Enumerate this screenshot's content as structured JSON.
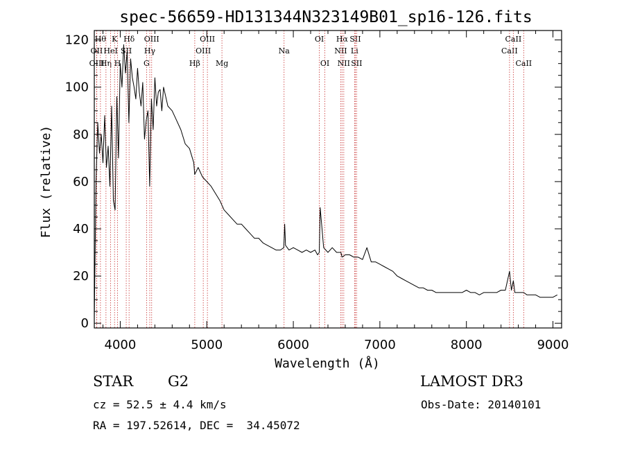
{
  "chart_data": {
    "type": "line",
    "title": "spec-56659-HD131344N323149B01_sp16-126.fits",
    "xlabel": "Wavelength (Å)",
    "ylabel": "Flux (relative)",
    "xlim": [
      3700,
      9100
    ],
    "ylim": [
      -2,
      124
    ],
    "xticks": [
      4000,
      5000,
      6000,
      7000,
      8000,
      9000
    ],
    "yticks": [
      0,
      20,
      40,
      60,
      80,
      100,
      120
    ],
    "series": [
      {
        "name": "spectrum",
        "x": [
          3700,
          3720,
          3740,
          3760,
          3780,
          3800,
          3820,
          3840,
          3860,
          3880,
          3900,
          3920,
          3940,
          3960,
          3980,
          4000,
          4020,
          4040,
          4060,
          4080,
          4100,
          4120,
          4140,
          4160,
          4180,
          4200,
          4220,
          4240,
          4260,
          4280,
          4300,
          4320,
          4340,
          4360,
          4380,
          4400,
          4420,
          4440,
          4460,
          4480,
          4500,
          4550,
          4600,
          4650,
          4700,
          4750,
          4800,
          4850,
          4860,
          4900,
          4950,
          5000,
          5050,
          5100,
          5150,
          5200,
          5250,
          5300,
          5350,
          5400,
          5450,
          5500,
          5550,
          5600,
          5650,
          5700,
          5750,
          5800,
          5850,
          5890,
          5900,
          5910,
          5950,
          6000,
          6050,
          6100,
          6150,
          6200,
          6250,
          6280,
          6300,
          6310,
          6350,
          6400,
          6450,
          6500,
          6550,
          6563,
          6600,
          6650,
          6700,
          6750,
          6800,
          6850,
          6900,
          6950,
          7000,
          7050,
          7100,
          7150,
          7200,
          7250,
          7300,
          7350,
          7400,
          7450,
          7500,
          7550,
          7600,
          7650,
          7700,
          7750,
          7800,
          7850,
          7900,
          7950,
          8000,
          8050,
          8100,
          8150,
          8200,
          8250,
          8300,
          8350,
          8400,
          8450,
          8498,
          8520,
          8542,
          8560,
          8600,
          8662,
          8700,
          8750,
          8800,
          8850,
          8900,
          8950,
          9000,
          9050
        ],
        "y": [
          2,
          60,
          85,
          72,
          80,
          68,
          88,
          66,
          75,
          58,
          92,
          52,
          48,
          96,
          70,
          110,
          100,
          118,
          106,
          115,
          85,
          112,
          104,
          100,
          95,
          108,
          98,
          92,
          102,
          78,
          86,
          90,
          58,
          95,
          82,
          104,
          92,
          98,
          99,
          90,
          100,
          92,
          90,
          86,
          82,
          76,
          74,
          68,
          63,
          66,
          62,
          60,
          58,
          55,
          52,
          48,
          46,
          44,
          42,
          42,
          40,
          38,
          36,
          36,
          34,
          33,
          32,
          31,
          31,
          32,
          42,
          33,
          31,
          32,
          31,
          30,
          31,
          30,
          31,
          29,
          30,
          49,
          32,
          30,
          32,
          30,
          30,
          28,
          29,
          29,
          28,
          28,
          27,
          32,
          26,
          26,
          25,
          24,
          23,
          22,
          20,
          19,
          18,
          17,
          16,
          15,
          15,
          14,
          14,
          13,
          13,
          13,
          13,
          13,
          13,
          13,
          14,
          13,
          13,
          12,
          13,
          13,
          13,
          13,
          14,
          14,
          22,
          14,
          18,
          13,
          13,
          13,
          12,
          12,
          12,
          11,
          11,
          11,
          11,
          12
        ]
      }
    ],
    "line_markers": [
      {
        "label": "OII",
        "x": 3727,
        "row": 1
      },
      {
        "label": "OIII",
        "x": 3729,
        "row": 2
      },
      {
        "label": "Hθ",
        "x": 3771,
        "row": 0
      },
      {
        "label": "Hη",
        "x": 3835,
        "row": 2
      },
      {
        "label": "HeI",
        "x": 3889,
        "row": 1
      },
      {
        "label": "K",
        "x": 3934,
        "row": 0
      },
      {
        "label": "H",
        "x": 3969,
        "row": 2
      },
      {
        "label": "SII",
        "x": 4069,
        "row": 1
      },
      {
        "label": "Hδ",
        "x": 4102,
        "row": 0
      },
      {
        "label": "G",
        "x": 4304,
        "row": 2
      },
      {
        "label": "Hγ",
        "x": 4341,
        "row": 1
      },
      {
        "label": "OIII",
        "x": 4363,
        "row": 0
      },
      {
        "label": "Hβ",
        "x": 4861,
        "row": 2
      },
      {
        "label": "OIII",
        "x": 4959,
        "row": 1
      },
      {
        "label": "OIII",
        "x": 5007,
        "row": 0
      },
      {
        "label": "Mg",
        "x": 5175,
        "row": 2
      },
      {
        "label": "Na",
        "x": 5893,
        "row": 1
      },
      {
        "label": "OI",
        "x": 6300,
        "row": 0
      },
      {
        "label": "OI",
        "x": 6364,
        "row": 2
      },
      {
        "label": "NII",
        "x": 6548,
        "row": 1
      },
      {
        "label": "Hα",
        "x": 6563,
        "row": 0
      },
      {
        "label": "NII",
        "x": 6583,
        "row": 2
      },
      {
        "label": "Li",
        "x": 6707,
        "row": 1
      },
      {
        "label": "SII",
        "x": 6716,
        "row": 0
      },
      {
        "label": "SII",
        "x": 6731,
        "row": 2
      },
      {
        "label": "CaII",
        "x": 8498,
        "row": 1
      },
      {
        "label": "CaII",
        "x": 8542,
        "row": 0
      },
      {
        "label": "CaII",
        "x": 8662,
        "row": 2
      }
    ]
  },
  "info": {
    "object_class": "STAR",
    "subclass": "G2",
    "survey": "LAMOST DR3",
    "redshift": "cz = 52.5 ± 4.4 km/s",
    "obs_date": "Obs-Date: 20140101",
    "coords": "RA = 197.52614, DEC =  34.45072"
  },
  "colors": {
    "spectrum": "#000000",
    "marker": "#c83232",
    "axis": "#000000"
  }
}
